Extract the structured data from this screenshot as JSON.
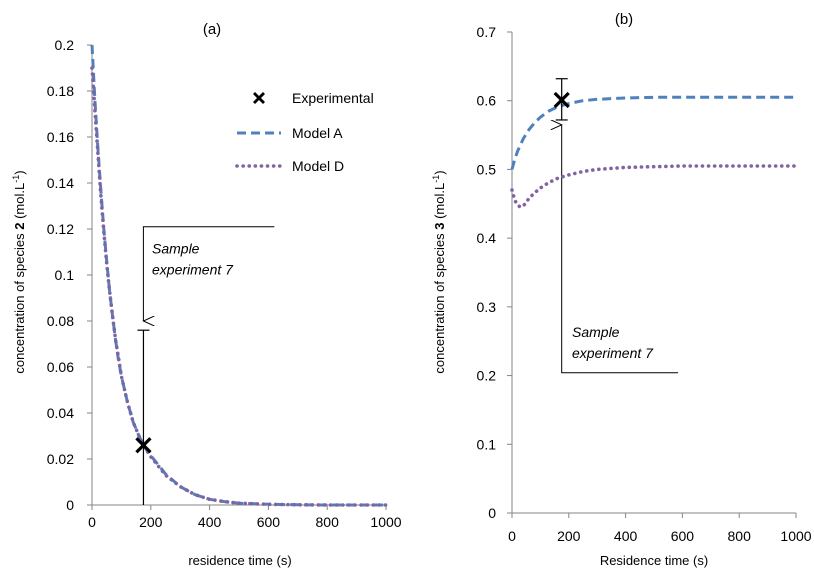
{
  "chart_data": [
    {
      "type": "line",
      "panel_label": "(a)",
      "xlabel": "residence time (s)",
      "ylabel": {
        "prefix": "concentration of species ",
        "bold": "2",
        "suffix": " (mol.L",
        "sup": "-1",
        "end": ")"
      },
      "xlim": [
        0,
        1000
      ],
      "ylim": [
        0,
        0.2
      ],
      "xticks": [
        0,
        200,
        400,
        600,
        800,
        1000
      ],
      "xtick_labels": [
        "0",
        "200",
        "400",
        "600",
        "800",
        "1000"
      ],
      "yticks": [
        0,
        0.02,
        0.04,
        0.06,
        0.08,
        0.1,
        0.12,
        0.14,
        0.16,
        0.18,
        0.2
      ],
      "ytick_labels": [
        "0",
        "0.02",
        "0.04",
        "0.06",
        "0.08",
        "0.1",
        "0.12",
        "0.14",
        "0.16",
        "0.18",
        "0.2"
      ],
      "grid": false,
      "legend": {
        "placement": "top-right",
        "items": [
          {
            "label": "Experimental",
            "marker": "x",
            "color": "#000000"
          },
          {
            "label": "Model A",
            "style": "dashed",
            "color": "#4f81bd"
          },
          {
            "label": "Model D",
            "style": "dotted",
            "color": "#8064a2"
          }
        ]
      },
      "series": [
        {
          "name": "Model A",
          "style": "dashed",
          "color": "#4f81bd",
          "x": [
            0,
            10,
            20,
            30,
            40,
            50,
            60,
            70,
            80,
            90,
            100,
            120,
            140,
            160,
            180,
            200,
            250,
            300,
            350,
            400,
            450,
            500,
            600,
            700,
            800,
            900,
            1000
          ],
          "y": [
            0.2,
            0.176,
            0.155,
            0.137,
            0.12,
            0.106,
            0.093,
            0.082,
            0.072,
            0.063,
            0.056,
            0.045,
            0.036,
            0.03,
            0.025,
            0.0215,
            0.0135,
            0.008,
            0.0045,
            0.0025,
            0.0015,
            0.0008,
            0.0003,
            0.0001,
            0,
            0,
            0
          ]
        },
        {
          "name": "Model D",
          "style": "dotted",
          "color": "#8064a2",
          "x": [
            0,
            10,
            20,
            30,
            40,
            50,
            60,
            70,
            80,
            90,
            100,
            120,
            140,
            160,
            180,
            200,
            250,
            300,
            350,
            400,
            450,
            500,
            600,
            700,
            800,
            900,
            1000
          ],
          "y": [
            0.19,
            0.172,
            0.153,
            0.135,
            0.119,
            0.105,
            0.093,
            0.082,
            0.072,
            0.064,
            0.056,
            0.045,
            0.036,
            0.03,
            0.025,
            0.021,
            0.013,
            0.008,
            0.0045,
            0.0025,
            0.0015,
            0.0008,
            0.0003,
            0.0001,
            0,
            0,
            0
          ]
        }
      ],
      "experimental": [
        {
          "x": 175,
          "y": 0.026
        }
      ],
      "error_bars": [
        {
          "x": 175,
          "low": 0,
          "high": 0.076
        }
      ],
      "annotation": {
        "lines": [
          "Sample",
          "experiment 7"
        ],
        "leader": [
          [
            620,
            0.121
          ],
          [
            175,
            0.121
          ],
          [
            175,
            0.08
          ]
        ]
      }
    },
    {
      "type": "line",
      "panel_label": "(b)",
      "xlabel": "Residence time (s)",
      "ylabel": {
        "prefix": "concentration of species ",
        "bold": "3",
        "suffix": " (mol.L",
        "sup": "-1",
        "end": ")"
      },
      "xlim": [
        0,
        1000
      ],
      "ylim": [
        0,
        0.7
      ],
      "xticks": [
        0,
        200,
        400,
        600,
        800,
        1000
      ],
      "xtick_labels": [
        "0",
        "200",
        "400",
        "600",
        "800",
        "1000"
      ],
      "yticks": [
        0,
        0.1,
        0.2,
        0.3,
        0.4,
        0.5,
        0.6,
        0.7
      ],
      "ytick_labels": [
        "0",
        "0.1",
        "0.2",
        "0.3",
        "0.4",
        "0.5",
        "0.6",
        "0.7"
      ],
      "grid": false,
      "series": [
        {
          "name": "Model A",
          "style": "dashed",
          "color": "#4f81bd",
          "x": [
            0,
            10,
            20,
            40,
            60,
            80,
            100,
            130,
            160,
            200,
            250,
            300,
            400,
            500,
            600,
            700,
            800,
            900,
            1000
          ],
          "y": [
            0.5,
            0.515,
            0.527,
            0.545,
            0.558,
            0.568,
            0.576,
            0.585,
            0.591,
            0.596,
            0.6,
            0.602,
            0.604,
            0.605,
            0.605,
            0.605,
            0.605,
            0.605,
            0.605
          ]
        },
        {
          "name": "Model D",
          "style": "dotted",
          "color": "#8064a2",
          "x": [
            0,
            10,
            20,
            30,
            40,
            50,
            60,
            80,
            100,
            130,
            160,
            200,
            250,
            300,
            400,
            500,
            600,
            700,
            800,
            900,
            1000
          ],
          "y": [
            0.47,
            0.455,
            0.448,
            0.445,
            0.447,
            0.452,
            0.458,
            0.466,
            0.473,
            0.481,
            0.487,
            0.492,
            0.497,
            0.5,
            0.503,
            0.504,
            0.505,
            0.505,
            0.505,
            0.505,
            0.505
          ]
        }
      ],
      "experimental": [
        {
          "x": 175,
          "y": 0.601
        }
      ],
      "error_bars": [
        {
          "x": 175,
          "low": 0.572,
          "high": 0.632
        }
      ],
      "annotation": {
        "lines": [
          "Sample",
          "experiment 7"
        ],
        "leader": [
          [
            585,
            0.204
          ],
          [
            175,
            0.204
          ],
          [
            175,
            0.565
          ]
        ]
      }
    }
  ]
}
